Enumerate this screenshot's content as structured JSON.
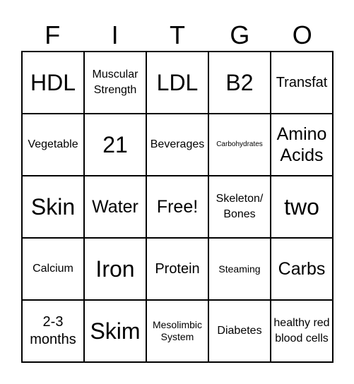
{
  "header": {
    "letters": [
      "F",
      "I",
      "T",
      "G",
      "O"
    ]
  },
  "board": {
    "rows": [
      [
        "HDL",
        "Muscular Strength",
        "LDL",
        "B2",
        "Transfat"
      ],
      [
        "Vegetable",
        "21",
        "Beverages",
        "Carbohydrates",
        "Amino Acids"
      ],
      [
        "Skin",
        "Water",
        "Free!",
        "Skeleton/ Bones",
        "two"
      ],
      [
        "Calcium",
        "Iron",
        "Protein",
        "Steaming",
        "Carbs"
      ],
      [
        "2-3 months",
        "Skim",
        "Mesolimbic System",
        "Diabetes",
        "healthy red blood cells"
      ]
    ]
  }
}
